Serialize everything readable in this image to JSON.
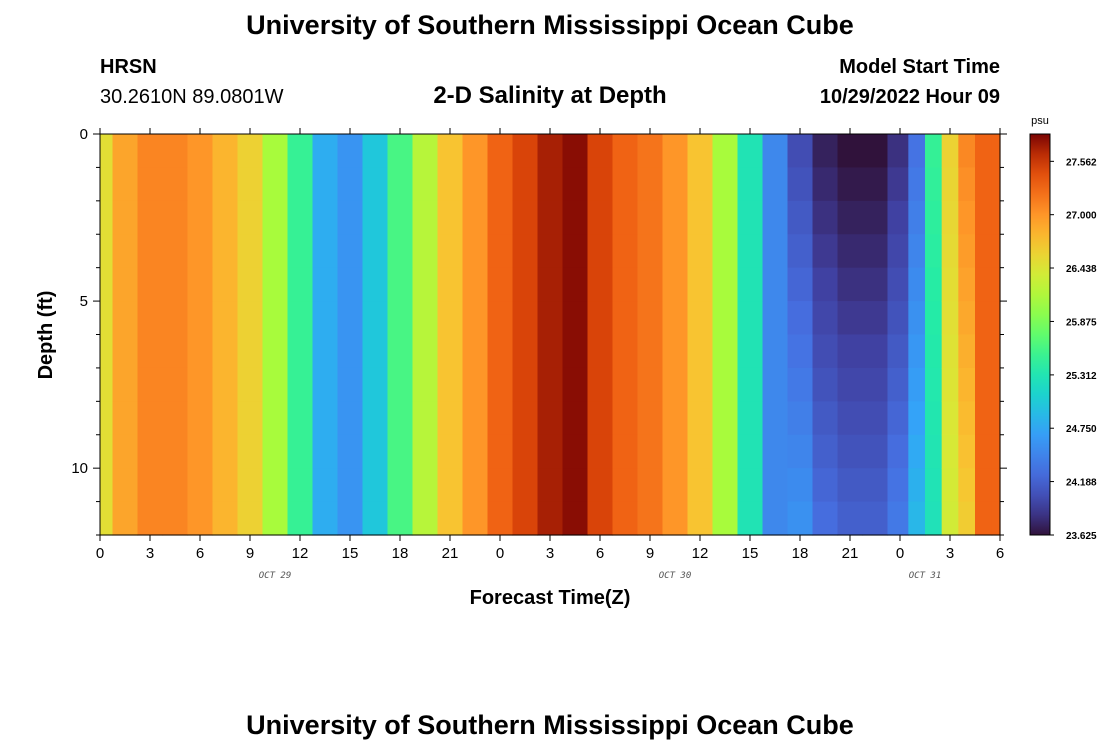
{
  "header": {
    "title": "University of Southern Mississippi Ocean Cube",
    "station_name": "HRSN",
    "station_coords": "30.2610N  89.0801W",
    "plot_title": "2-D Salinity at Depth",
    "model_start_label": "Model Start Time",
    "model_start_value": "10/29/2022 Hour 09"
  },
  "footer": {
    "title": "University of Southern Mississippi Ocean Cube"
  },
  "chart_data": {
    "type": "heatmap",
    "title": "2-D Salinity at Depth",
    "xlabel": "Forecast Time(Z)",
    "ylabel": "Depth (ft)",
    "x_start": "10/29/2022 00Z",
    "x_end": "10/31/2022 06Z",
    "x_tick_labels": [
      "0",
      "3",
      "6",
      "9",
      "12",
      "15",
      "18",
      "21",
      "0",
      "3",
      "6",
      "9",
      "12",
      "15",
      "18",
      "21",
      "0",
      "3",
      "6"
    ],
    "date_labels": [
      {
        "text": "OCT 29",
        "at_tick": 3.5
      },
      {
        "text": "OCT 30",
        "at_tick": 11.5
      },
      {
        "text": "OCT 31",
        "at_tick": 16.5
      }
    ],
    "x_time_hours": [
      0,
      1.5,
      3,
      4.5,
      6,
      7.5,
      9,
      10.5,
      12,
      13.5,
      15,
      16.5,
      18,
      19.5,
      21,
      22.5,
      24,
      25.5,
      27,
      28.5,
      30,
      31.5,
      33,
      34.5,
      36,
      37.5,
      39,
      40.5,
      42,
      43.5,
      45,
      46.5,
      48,
      49,
      50,
      51,
      52,
      53,
      54
    ],
    "surface_salinity_psu": [
      26.5,
      26.9,
      27.1,
      27.1,
      27.0,
      26.8,
      26.6,
      26.1,
      25.5,
      24.8,
      24.6,
      25.0,
      25.6,
      26.2,
      26.7,
      27.0,
      27.3,
      27.5,
      27.7,
      27.8,
      27.5,
      27.3,
      27.2,
      27.0,
      26.7,
      26.1,
      25.3,
      24.5,
      24.0,
      23.7,
      23.6,
      23.6,
      23.8,
      24.3,
      25.5,
      26.6,
      27.1,
      27.3,
      27.3
    ],
    "y_ticks": [
      0,
      5,
      10
    ],
    "ylim": [
      0,
      12
    ],
    "colorbar": {
      "unit": "psu",
      "range": [
        23.625,
        27.85
      ],
      "labels": [
        "27.562",
        "27.000",
        "26.438",
        "25.875",
        "25.312",
        "24.750",
        "24.188",
        "23.625"
      ]
    }
  }
}
